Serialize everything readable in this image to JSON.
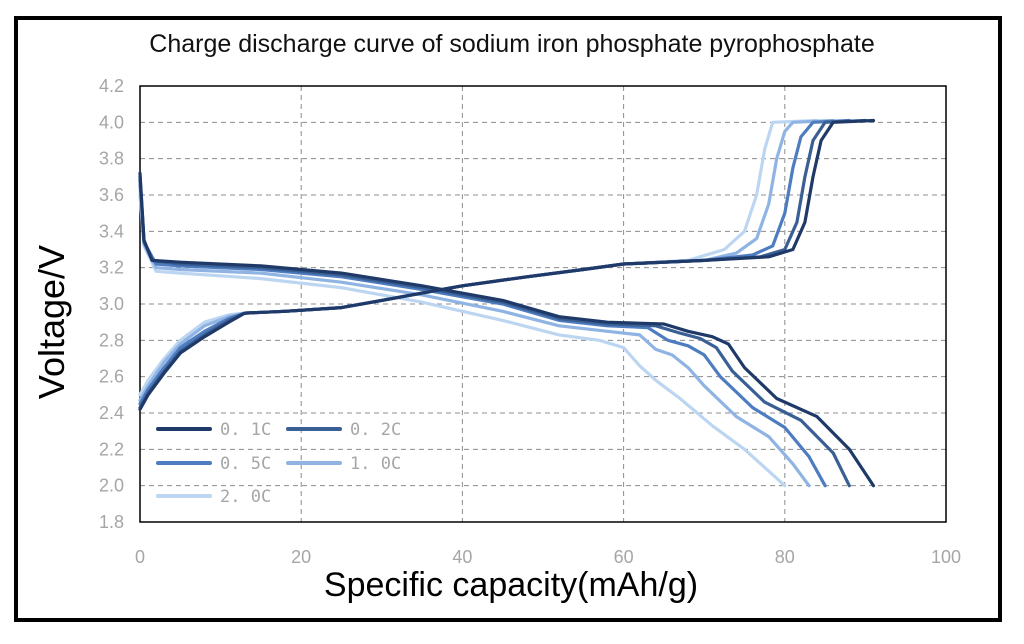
{
  "chart_data": {
    "type": "line",
    "title": "Charge discharge curve of sodium iron phosphate pyrophosphate",
    "xlabel": "Specific capacity(mAh/g)",
    "ylabel": "Voltage/V",
    "xlim": [
      0,
      100
    ],
    "ylim": [
      1.8,
      4.2
    ],
    "xticks": [
      "0",
      "20",
      "40",
      "60",
      "80",
      "100"
    ],
    "yticks": [
      "1.8",
      "2.0",
      "2.2",
      "2.4",
      "2.6",
      "2.8",
      "3.0",
      "3.2",
      "3.4",
      "3.6",
      "3.8",
      "4.0",
      "4.2"
    ],
    "grid": true,
    "legend_position": "bottom-left",
    "series": [
      {
        "name": "0. 1C",
        "color": "#1f3a68",
        "charge": [
          [
            0,
            2.42
          ],
          [
            1,
            2.5
          ],
          [
            3,
            2.62
          ],
          [
            5,
            2.73
          ],
          [
            8,
            2.82
          ],
          [
            11,
            2.9
          ],
          [
            13,
            2.95
          ],
          [
            18,
            2.96
          ],
          [
            25,
            2.98
          ],
          [
            30,
            3.02
          ],
          [
            35,
            3.06
          ],
          [
            40,
            3.1
          ],
          [
            48,
            3.15
          ],
          [
            55,
            3.19
          ],
          [
            60,
            3.22
          ],
          [
            70,
            3.24
          ],
          [
            78,
            3.26
          ],
          [
            81,
            3.3
          ],
          [
            82.5,
            3.45
          ],
          [
            83.5,
            3.7
          ],
          [
            84.5,
            3.9
          ],
          [
            86,
            4.0
          ],
          [
            91,
            4.01
          ]
        ],
        "discharge": [
          [
            0,
            3.72
          ],
          [
            0.5,
            3.35
          ],
          [
            1.5,
            3.24
          ],
          [
            5,
            3.23
          ],
          [
            15,
            3.21
          ],
          [
            25,
            3.17
          ],
          [
            35,
            3.1
          ],
          [
            45,
            3.02
          ],
          [
            52,
            2.93
          ],
          [
            58,
            2.9
          ],
          [
            65,
            2.89
          ],
          [
            68,
            2.85
          ],
          [
            71,
            2.82
          ],
          [
            73,
            2.78
          ],
          [
            75,
            2.65
          ],
          [
            79,
            2.48
          ],
          [
            84,
            2.38
          ],
          [
            88,
            2.2
          ],
          [
            91,
            2.0
          ]
        ]
      },
      {
        "name": "0. 2C",
        "color": "#3a5f94",
        "charge": [
          [
            0,
            2.43
          ],
          [
            1,
            2.51
          ],
          [
            3,
            2.63
          ],
          [
            5,
            2.74
          ],
          [
            8,
            2.83
          ],
          [
            11,
            2.91
          ],
          [
            13,
            2.95
          ],
          [
            18,
            2.96
          ],
          [
            25,
            2.98
          ],
          [
            30,
            3.02
          ],
          [
            35,
            3.06
          ],
          [
            40,
            3.1
          ],
          [
            48,
            3.15
          ],
          [
            55,
            3.19
          ],
          [
            60,
            3.22
          ],
          [
            70,
            3.24
          ],
          [
            77,
            3.26
          ],
          [
            80,
            3.3
          ],
          [
            81.5,
            3.45
          ],
          [
            82.5,
            3.7
          ],
          [
            83.5,
            3.9
          ],
          [
            85,
            4.0
          ],
          [
            90,
            4.01
          ]
        ],
        "discharge": [
          [
            0,
            3.7
          ],
          [
            0.5,
            3.35
          ],
          [
            1.5,
            3.24
          ],
          [
            5,
            3.22
          ],
          [
            15,
            3.2
          ],
          [
            25,
            3.16
          ],
          [
            35,
            3.09
          ],
          [
            45,
            3.01
          ],
          [
            52,
            2.92
          ],
          [
            58,
            2.89
          ],
          [
            64,
            2.88
          ],
          [
            67,
            2.84
          ],
          [
            69.5,
            2.81
          ],
          [
            71.5,
            2.76
          ],
          [
            73.5,
            2.63
          ],
          [
            77.5,
            2.46
          ],
          [
            82,
            2.36
          ],
          [
            86,
            2.18
          ],
          [
            88,
            2.0
          ]
        ]
      },
      {
        "name": "0. 5C",
        "color": "#4e7cc0",
        "charge": [
          [
            0,
            2.45
          ],
          [
            1,
            2.53
          ],
          [
            3,
            2.65
          ],
          [
            5,
            2.76
          ],
          [
            8,
            2.85
          ],
          [
            11,
            2.92
          ],
          [
            13,
            2.95
          ],
          [
            18,
            2.96
          ],
          [
            25,
            2.98
          ],
          [
            30,
            3.02
          ],
          [
            35,
            3.06
          ],
          [
            40,
            3.1
          ],
          [
            48,
            3.15
          ],
          [
            55,
            3.19
          ],
          [
            60,
            3.22
          ],
          [
            70,
            3.24
          ],
          [
            76,
            3.27
          ],
          [
            78.5,
            3.32
          ],
          [
            80,
            3.5
          ],
          [
            81,
            3.75
          ],
          [
            82,
            3.92
          ],
          [
            83.5,
            4.0
          ],
          [
            88,
            4.01
          ]
        ],
        "discharge": [
          [
            0,
            3.68
          ],
          [
            0.5,
            3.34
          ],
          [
            2,
            3.22
          ],
          [
            5,
            3.21
          ],
          [
            15,
            3.19
          ],
          [
            25,
            3.15
          ],
          [
            35,
            3.08
          ],
          [
            45,
            3.0
          ],
          [
            52,
            2.91
          ],
          [
            58,
            2.88
          ],
          [
            63,
            2.87
          ],
          [
            65.5,
            2.8
          ],
          [
            68,
            2.77
          ],
          [
            70,
            2.72
          ],
          [
            72,
            2.6
          ],
          [
            76,
            2.43
          ],
          [
            80,
            2.32
          ],
          [
            83,
            2.16
          ],
          [
            85,
            2.0
          ]
        ]
      },
      {
        "name": "1. 0C",
        "color": "#8fb4e3",
        "charge": [
          [
            0,
            2.47
          ],
          [
            1,
            2.55
          ],
          [
            3,
            2.68
          ],
          [
            5,
            2.78
          ],
          [
            8,
            2.88
          ],
          [
            11,
            2.93
          ],
          [
            13,
            2.95
          ],
          [
            18,
            2.96
          ],
          [
            25,
            2.98
          ],
          [
            30,
            3.02
          ],
          [
            35,
            3.06
          ],
          [
            40,
            3.1
          ],
          [
            48,
            3.15
          ],
          [
            55,
            3.19
          ],
          [
            60,
            3.22
          ],
          [
            70,
            3.24
          ],
          [
            74,
            3.28
          ],
          [
            76.5,
            3.36
          ],
          [
            78,
            3.55
          ],
          [
            79,
            3.8
          ],
          [
            80,
            3.95
          ],
          [
            81,
            4.0
          ],
          [
            86,
            4.01
          ]
        ],
        "discharge": [
          [
            0,
            3.65
          ],
          [
            0.5,
            3.33
          ],
          [
            2,
            3.2
          ],
          [
            5,
            3.19
          ],
          [
            15,
            3.17
          ],
          [
            25,
            3.12
          ],
          [
            35,
            3.05
          ],
          [
            45,
            2.96
          ],
          [
            52,
            2.88
          ],
          [
            58,
            2.85
          ],
          [
            62,
            2.83
          ],
          [
            64,
            2.75
          ],
          [
            66,
            2.72
          ],
          [
            68,
            2.65
          ],
          [
            70,
            2.55
          ],
          [
            74,
            2.38
          ],
          [
            78,
            2.27
          ],
          [
            81,
            2.12
          ],
          [
            83,
            2.0
          ]
        ]
      },
      {
        "name": "2. 0C",
        "color": "#bcd6f2",
        "charge": [
          [
            0,
            2.5
          ],
          [
            1,
            2.58
          ],
          [
            3,
            2.7
          ],
          [
            5,
            2.8
          ],
          [
            8,
            2.9
          ],
          [
            11,
            2.94
          ],
          [
            13,
            2.95
          ],
          [
            18,
            2.96
          ],
          [
            25,
            2.98
          ],
          [
            30,
            3.02
          ],
          [
            35,
            3.06
          ],
          [
            40,
            3.1
          ],
          [
            48,
            3.15
          ],
          [
            55,
            3.19
          ],
          [
            60,
            3.22
          ],
          [
            68,
            3.24
          ],
          [
            72.5,
            3.3
          ],
          [
            75,
            3.4
          ],
          [
            76.5,
            3.6
          ],
          [
            77.5,
            3.85
          ],
          [
            78.5,
            4.0
          ],
          [
            84,
            4.01
          ]
        ],
        "discharge": [
          [
            0,
            3.6
          ],
          [
            0.5,
            3.32
          ],
          [
            2,
            3.18
          ],
          [
            5,
            3.17
          ],
          [
            15,
            3.14
          ],
          [
            25,
            3.09
          ],
          [
            35,
            3.01
          ],
          [
            45,
            2.91
          ],
          [
            52,
            2.83
          ],
          [
            57,
            2.8
          ],
          [
            60,
            2.76
          ],
          [
            62,
            2.66
          ],
          [
            64,
            2.58
          ],
          [
            67,
            2.48
          ],
          [
            71,
            2.33
          ],
          [
            75,
            2.2
          ],
          [
            78,
            2.08
          ],
          [
            80,
            2.0
          ]
        ]
      }
    ]
  }
}
